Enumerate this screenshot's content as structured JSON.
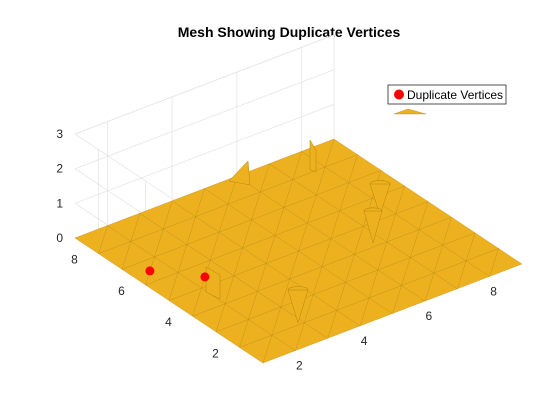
{
  "chart_data": {
    "type": "surface",
    "title": "Mesh Showing Duplicate Vertices",
    "xlabel": "",
    "ylabel": "",
    "zlabel": "",
    "xlim": [
      1,
      9
    ],
    "ylim": [
      1,
      9
    ],
    "zlim": [
      0,
      3
    ],
    "x_ticks": [
      "2",
      "4",
      "6",
      "8"
    ],
    "y_ticks": [
      "2",
      "4",
      "6",
      "8"
    ],
    "z_ticks": [
      "0",
      "1",
      "2",
      "3"
    ],
    "grid": true,
    "legend_position": "top-right",
    "surface": {
      "color": "#EDB120",
      "edge_color": "#B8860B",
      "grid_size": [
        9,
        9
      ],
      "base_z": 0
    },
    "duplicate_vertices": {
      "name": "Duplicate Vertices",
      "color": "#FF0000",
      "points": [
        {
          "x": 1.5,
          "y": 6.5,
          "z": 0
        },
        {
          "x": 2.4,
          "y": 5.4,
          "z": 0
        }
      ]
    }
  }
}
